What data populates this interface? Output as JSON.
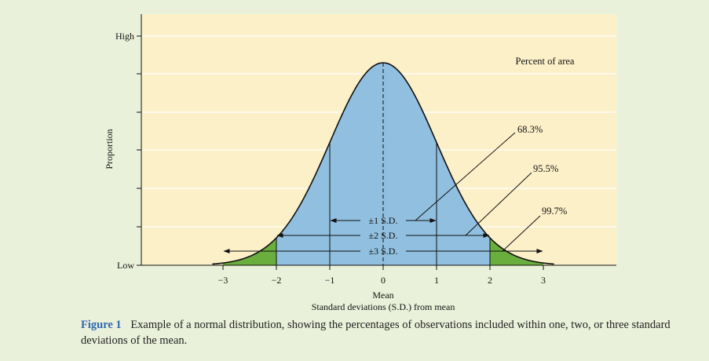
{
  "chart_data": {
    "type": "area",
    "distribution": "normal",
    "title": "",
    "xlabel_line1": "Mean",
    "xlabel_line2": "Standard deviations (S.D.) from mean",
    "ylabel": "Proportion",
    "xlim": [
      -4,
      4.6
    ],
    "x_ticks": [
      -3,
      -2,
      -1,
      0,
      1,
      2,
      3
    ],
    "x_tick_labels": [
      "−3",
      "−2",
      "−1",
      "0",
      "1",
      "2",
      "3"
    ],
    "y_tick_labels": {
      "top": "High",
      "bottom": "Low"
    },
    "mean": 0,
    "sd": 1,
    "area_label": "Percent of area",
    "bands": [
      {
        "range": "±1 S.D.",
        "sd": 1,
        "percent": "68.3%",
        "color": "#90bfdf"
      },
      {
        "range": "±2 S.D.",
        "sd": 2,
        "percent": "95.5%",
        "color": "#90bfdf"
      },
      {
        "range": "±3 S.D.",
        "sd": 3,
        "percent": "99.7%",
        "color": "#6aae3e"
      }
    ],
    "colors": {
      "plot_background": "#fcf0c9",
      "center_fill": "#90bfdf",
      "tail_fill": "#6aae3e",
      "curve": "#111111"
    }
  },
  "caption": {
    "label": "Figure 1",
    "text": "Example of a normal distribution, showing the percentages of observations included within one, two, or three standard deviations of the mean."
  }
}
